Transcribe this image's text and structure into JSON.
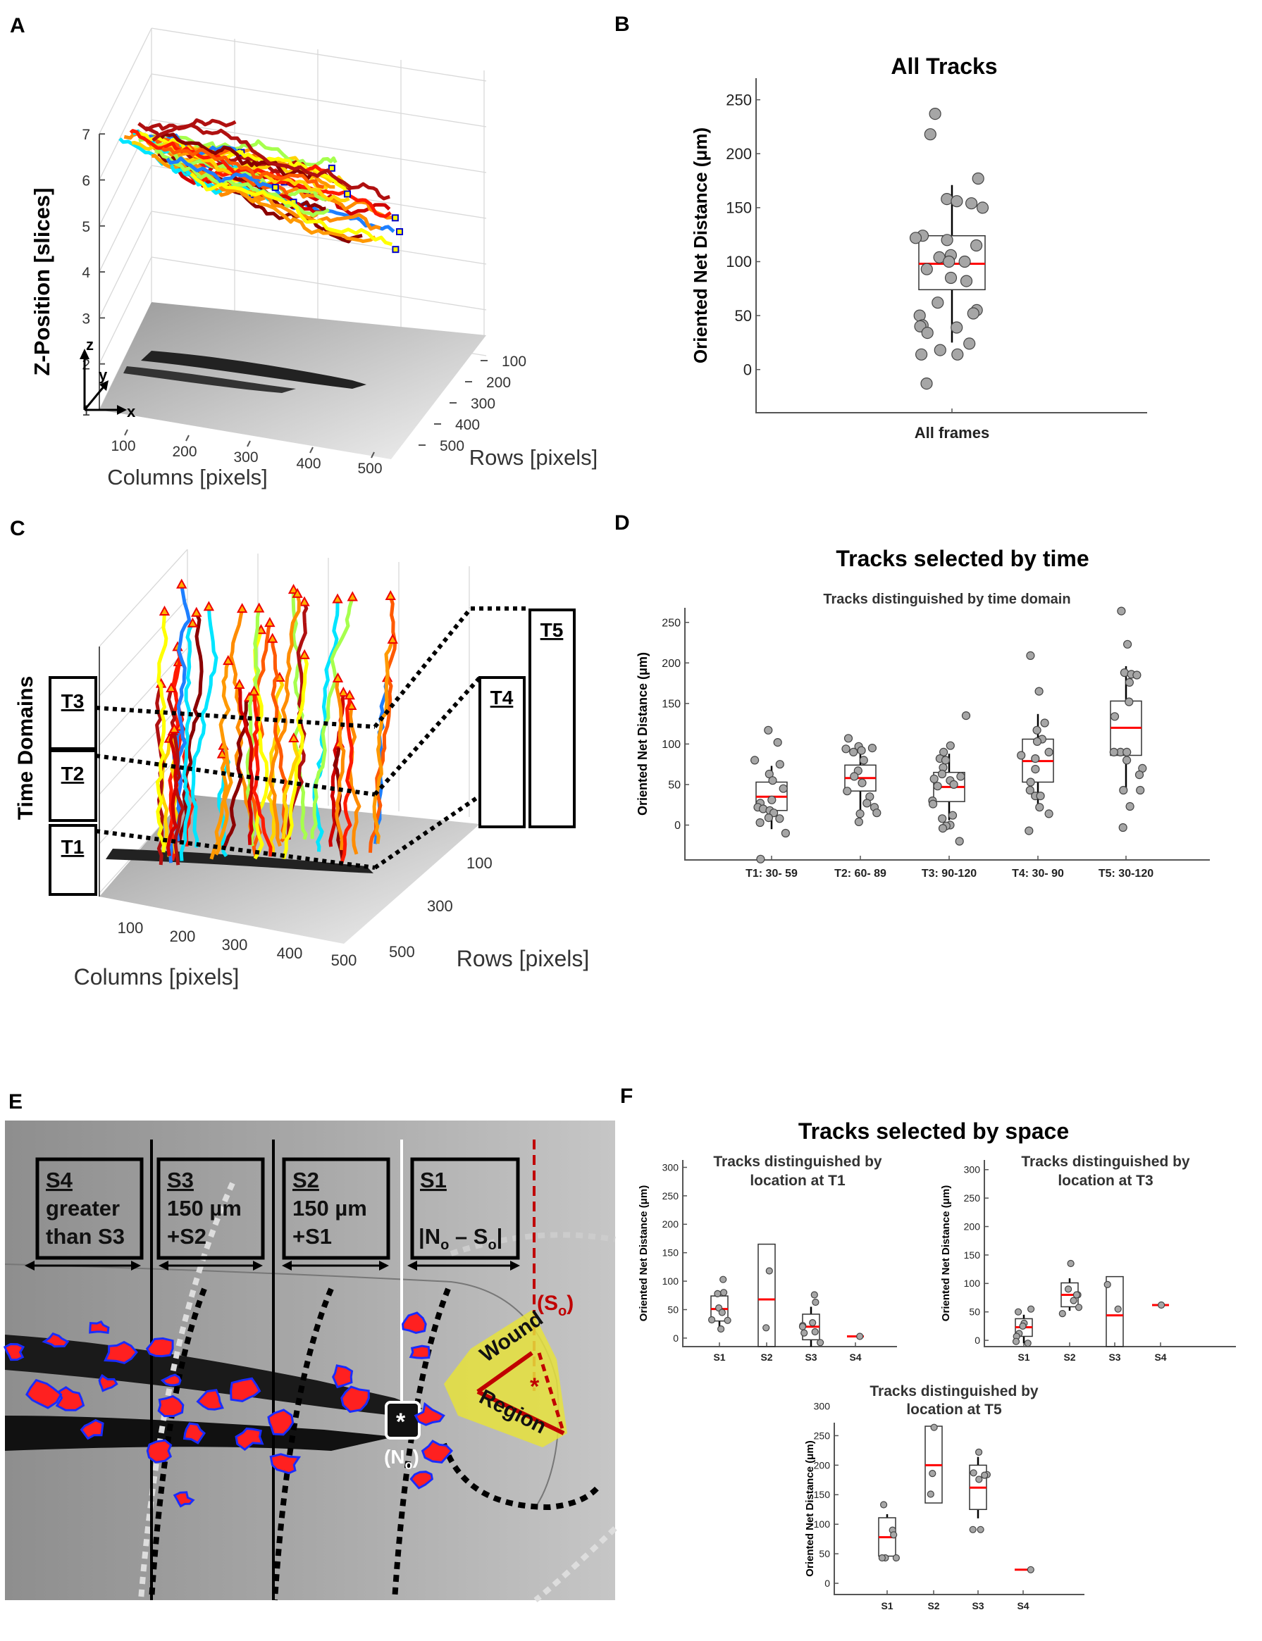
{
  "panel_labels": {
    "a": "A",
    "b": "B",
    "c": "C",
    "d": "D",
    "e": "E",
    "f": "F"
  },
  "colors": {
    "median": "#ff0000",
    "point_fill": "#a6a6a6",
    "wound_region": "#e6e23c",
    "so_marker": "#c00000",
    "cell_fill": "#ff2020",
    "cell_outline": "#1a2cff"
  },
  "panel_a": {
    "z_axis_label": "Z-Position [slices]",
    "x_axis_label": "Columns [pixels]",
    "y_axis_label": "Rows [pixels]",
    "z_ticks": [
      "1",
      "2",
      "3",
      "4",
      "5",
      "6",
      "7"
    ],
    "column_ticks": [
      "100",
      "200",
      "300",
      "400",
      "500"
    ],
    "row_ticks": [
      "100",
      "200",
      "300",
      "400",
      "500"
    ],
    "axis_letters": {
      "x": "x",
      "y": "y",
      "z": "z"
    }
  },
  "panel_c": {
    "time_domain_label": "Time Domains",
    "domains": [
      "T1",
      "T2",
      "T3",
      "T4",
      "T5"
    ],
    "x_axis_label": "Columns [pixels]",
    "y_axis_label": "Rows [pixels]",
    "column_ticks": [
      "100",
      "200",
      "300",
      "400",
      "500"
    ],
    "row_ticks": [
      "100",
      "300",
      "500"
    ]
  },
  "panel_d_title": "Tracks selected by time",
  "panel_f_title": "Tracks selected by space",
  "panel_e": {
    "zones": [
      {
        "name": "S4",
        "lines": [
          "greater",
          "than S3"
        ]
      },
      {
        "name": "S3",
        "lines": [
          "150 µm",
          "+S2"
        ]
      },
      {
        "name": "S2",
        "lines": [
          "150 µm",
          "+S1"
        ]
      },
      {
        "name": "S1",
        "formula": {
          "n": "N",
          "o": "o",
          "dash": " – ",
          "s": "S"
        }
      }
    ],
    "so_label": {
      "open": "(S",
      "sub": "o",
      "close": ")"
    },
    "no_label": {
      "open": "(N",
      "sub": "o",
      "close": ")"
    },
    "wound_label": "Wound",
    "region_label": "Region",
    "asterisk": "*"
  },
  "chart_data": [
    {
      "id": "B",
      "type": "box",
      "title": "All Tracks",
      "ylabel": "Oriented Net Distance (μm)",
      "xlabel": "",
      "categories": [
        "All frames"
      ],
      "yticks": [
        0,
        50,
        100,
        150,
        200,
        250
      ],
      "ylim": [
        -40,
        270
      ],
      "grid": false,
      "groups": [
        {
          "box": {
            "whisker_low": 25,
            "q1": 74,
            "median": 98,
            "q3": 124,
            "whisker_high": 171
          },
          "points": [
            237,
            218,
            177,
            158,
            156,
            154,
            150,
            124,
            122,
            120,
            115,
            106,
            104,
            100,
            100,
            93,
            85,
            82,
            62,
            55,
            52,
            50,
            41,
            40,
            39,
            34,
            24,
            18,
            14,
            14,
            -13
          ]
        }
      ]
    },
    {
      "id": "D",
      "type": "box",
      "title": "Tracks distinguished by time domain",
      "ylabel": "Oriented Net Distance (μm)",
      "categories": [
        "T1: 30- 59",
        "T2: 60- 89",
        "T3: 90-120",
        "T4: 30- 90",
        "T5: 30-120"
      ],
      "yticks": [
        0,
        50,
        100,
        150,
        200,
        250
      ],
      "ylim": [
        -43,
        268
      ],
      "grid": false,
      "groups": [
        {
          "box": {
            "whisker_low": -5,
            "q1": 18,
            "median": 35,
            "q3": 53,
            "whisker_high": 73
          },
          "points": [
            117,
            102,
            80,
            75,
            63,
            55,
            45,
            31,
            27,
            22,
            20,
            18,
            15,
            9,
            8,
            3,
            -10,
            -42
          ]
        },
        {
          "box": {
            "whisker_low": 15,
            "q1": 42,
            "median": 58,
            "q3": 74,
            "whisker_high": 92
          },
          "points": [
            107,
            97,
            95,
            94,
            92,
            90,
            80,
            67,
            60,
            52,
            42,
            35,
            27,
            22,
            15,
            14,
            4
          ]
        },
        {
          "box": {
            "whisker_low": 6,
            "q1": 29,
            "median": 47,
            "q3": 65,
            "whisker_high": 88
          },
          "points": [
            135,
            98,
            90,
            82,
            80,
            71,
            63,
            60,
            57,
            55,
            50,
            48,
            30,
            26,
            12,
            8,
            0,
            -1,
            -4,
            -20
          ]
        },
        {
          "box": {
            "whisker_low": 22,
            "q1": 53,
            "median": 79,
            "q3": 106,
            "whisker_high": 137
          },
          "points": [
            209,
            165,
            126,
            117,
            106,
            103,
            90,
            86,
            82,
            69,
            53,
            43,
            36,
            36,
            22,
            14,
            -7
          ]
        },
        {
          "box": {
            "whisker_low": 44,
            "q1": 86,
            "median": 120,
            "q3": 153,
            "whisker_high": 196
          },
          "points": [
            264,
            223,
            188,
            186,
            185,
            176,
            152,
            134,
            90,
            90,
            90,
            80,
            70,
            62,
            43,
            43,
            23,
            -3
          ]
        }
      ]
    },
    {
      "id": "F1",
      "type": "box",
      "title": [
        "Tracks distinguished  by",
        "location at T1"
      ],
      "ylabel": "Oriented Net Distance (μm)",
      "categories": [
        "S1",
        "S2",
        "S3",
        "S4"
      ],
      "yticks": [
        0,
        50,
        100,
        150,
        200,
        250,
        300
      ],
      "ylim": [
        -15,
        313
      ],
      "grid": false,
      "groups": [
        {
          "box": {
            "whisker_low": 20,
            "q1": 30,
            "median": 51,
            "q3": 74,
            "whisker_high": 80
          },
          "points": [
            103,
            80,
            78,
            53,
            45,
            32,
            31,
            16
          ]
        },
        {
          "box": {
            "whisker_low": -15,
            "q1": -15,
            "median": 68,
            "q3": 165,
            "whisker_high": 165
          },
          "points": [
            118,
            18
          ]
        },
        {
          "box": {
            "whisker_low": -15,
            "q1": -3,
            "median": 20,
            "q3": 42,
            "whisker_high": 55
          },
          "points": [
            76,
            63,
            27,
            22,
            20,
            11,
            9,
            -8
          ]
        },
        {
          "box": {
            "whisker_low": 3,
            "q1": 3,
            "median": 3,
            "q3": 3,
            "whisker_high": 3
          },
          "points": [
            3
          ]
        }
      ]
    },
    {
      "id": "F2",
      "type": "box",
      "title": [
        "Tracks distinguished by",
        "location at T3"
      ],
      "ylabel": "Oriented Net Distance (μm)",
      "categories": [
        "S1",
        "S2",
        "S3",
        "S4"
      ],
      "yticks": [
        0,
        50,
        100,
        150,
        200,
        250,
        300
      ],
      "ylim": [
        -11,
        317
      ],
      "grid": false,
      "groups": [
        {
          "box": {
            "whisker_low": -5,
            "q1": 7,
            "median": 23,
            "q3": 38,
            "whisker_high": 45
          },
          "points": [
            55,
            50,
            30,
            25,
            12,
            7,
            -2,
            -5
          ]
        },
        {
          "box": {
            "whisker_low": 52,
            "q1": 59,
            "median": 80,
            "q3": 101,
            "whisker_high": 109
          },
          "points": [
            135,
            90,
            80,
            80,
            70,
            58,
            47
          ]
        },
        {
          "box": {
            "whisker_low": -11,
            "q1": -11,
            "median": 44,
            "q3": 112,
            "whisker_high": 112
          },
          "points": [
            98,
            55
          ]
        },
        {
          "box": {
            "whisker_low": 62,
            "q1": 62,
            "median": 62,
            "q3": 62,
            "whisker_high": 62
          },
          "points": [
            62
          ]
        }
      ]
    },
    {
      "id": "F3",
      "type": "box",
      "title": [
        "Tracks distinguished by",
        "location at T5"
      ],
      "ylabel": "Oriented Net Distance (μm)",
      "categories": [
        "S1",
        "S2",
        "S3",
        "S4"
      ],
      "yticks": [
        0,
        50,
        100,
        150,
        200,
        250,
        300
      ],
      "ylim": [
        -19,
        272
      ],
      "grid": false,
      "groups": [
        {
          "box": {
            "whisker_low": 43,
            "q1": 46,
            "median": 78,
            "q3": 111,
            "whisker_high": 117
          },
          "points": [
            133,
            90,
            82,
            43,
            43,
            43
          ]
        },
        {
          "box": {
            "whisker_low": 136,
            "q1": 136,
            "median": 200,
            "q3": 266,
            "whisker_high": 266
          },
          "points": [
            264,
            186,
            151
          ]
        },
        {
          "box": {
            "whisker_low": 110,
            "q1": 125,
            "median": 162,
            "q3": 200,
            "whisker_high": 214
          },
          "points": [
            222,
            187,
            184,
            183,
            176,
            91,
            91
          ]
        },
        {
          "box": {
            "whisker_low": 23,
            "q1": 23,
            "median": 23,
            "q3": 23,
            "whisker_high": 23
          },
          "points": [
            23
          ]
        }
      ]
    }
  ]
}
